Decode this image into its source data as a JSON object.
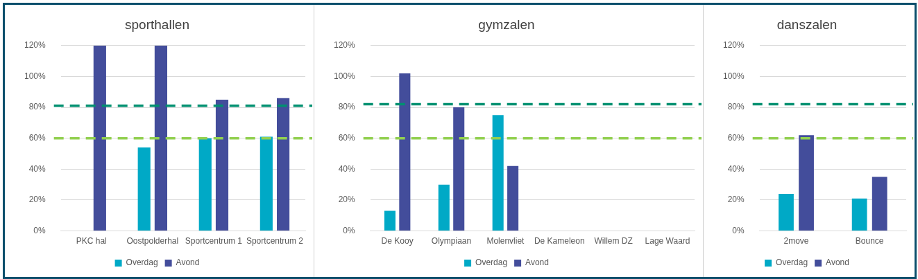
{
  "chart_data": [
    {
      "type": "bar",
      "title": "sporthallen",
      "categories": [
        "PKC hal",
        "Oostpolderhal",
        "Sportcentrum 1",
        "Sportcentrum 2"
      ],
      "series": [
        {
          "name": "Overdag",
          "color": "#00a9c6",
          "values": [
            null,
            54,
            60,
            61
          ]
        },
        {
          "name": "Avond",
          "color": "#434d9b",
          "values": [
            120,
            120,
            85,
            86
          ]
        }
      ],
      "ylim": [
        0,
        120
      ],
      "yticks": [
        {
          "value": 0,
          "label": "0%"
        },
        {
          "value": 20,
          "label": "20%"
        },
        {
          "value": 40,
          "label": "40%"
        },
        {
          "value": 60,
          "label": "60%"
        },
        {
          "value": 80,
          "label": "80%"
        },
        {
          "value": 100,
          "label": "100%"
        },
        {
          "value": 120,
          "label": "120%"
        }
      ],
      "ref_lines": [
        {
          "axis": "y",
          "value": 81,
          "color": "#009070",
          "line_style": "dashed"
        },
        {
          "axis": "y",
          "value": 60,
          "color": "#92d050",
          "line_style": "dashed"
        }
      ],
      "grid": "y",
      "legend": "bottom"
    },
    {
      "type": "bar",
      "title": "gymzalen",
      "categories": [
        "De Kooy",
        "Olympiaan",
        "Molenvliet",
        "De Kameleon",
        "Willem DZ",
        "Lage Waard"
      ],
      "series": [
        {
          "name": "Overdag",
          "color": "#00a9c6",
          "values": [
            13,
            30,
            75,
            null,
            null,
            null
          ]
        },
        {
          "name": "Avond",
          "color": "#434d9b",
          "values": [
            102,
            80,
            42,
            null,
            null,
            null
          ]
        }
      ],
      "ylim": [
        0,
        120
      ],
      "yticks": [
        {
          "value": 0,
          "label": "0%"
        },
        {
          "value": 20,
          "label": "20%"
        },
        {
          "value": 40,
          "label": "40%"
        },
        {
          "value": 60,
          "label": "60%"
        },
        {
          "value": 80,
          "label": "80%"
        },
        {
          "value": 100,
          "label": "100%"
        },
        {
          "value": 120,
          "label": "120%"
        }
      ],
      "ref_lines": [
        {
          "axis": "y",
          "value": 82,
          "color": "#009070",
          "line_style": "dashed"
        },
        {
          "axis": "y",
          "value": 60,
          "color": "#92d050",
          "line_style": "dashed"
        }
      ],
      "grid": "y",
      "legend": "bottom"
    },
    {
      "type": "bar",
      "title": "danszalen",
      "categories": [
        "2move",
        "Bounce"
      ],
      "series": [
        {
          "name": "Overdag",
          "color": "#00a9c6",
          "values": [
            24,
            21
          ]
        },
        {
          "name": "Avond",
          "color": "#434d9b",
          "values": [
            62,
            35
          ]
        }
      ],
      "ylim": [
        0,
        120
      ],
      "yticks": [
        {
          "value": 0,
          "label": "0%"
        },
        {
          "value": 20,
          "label": "20%"
        },
        {
          "value": 40,
          "label": "40%"
        },
        {
          "value": 60,
          "label": "60%"
        },
        {
          "value": 80,
          "label": "80%"
        },
        {
          "value": 100,
          "label": "100%"
        },
        {
          "value": 120,
          "label": "120%"
        }
      ],
      "ref_lines": [
        {
          "axis": "y",
          "value": 82,
          "color": "#009070",
          "line_style": "dashed"
        },
        {
          "axis": "y",
          "value": 60,
          "color": "#92d050",
          "line_style": "dashed"
        }
      ],
      "grid": "y",
      "legend": "bottom"
    }
  ]
}
